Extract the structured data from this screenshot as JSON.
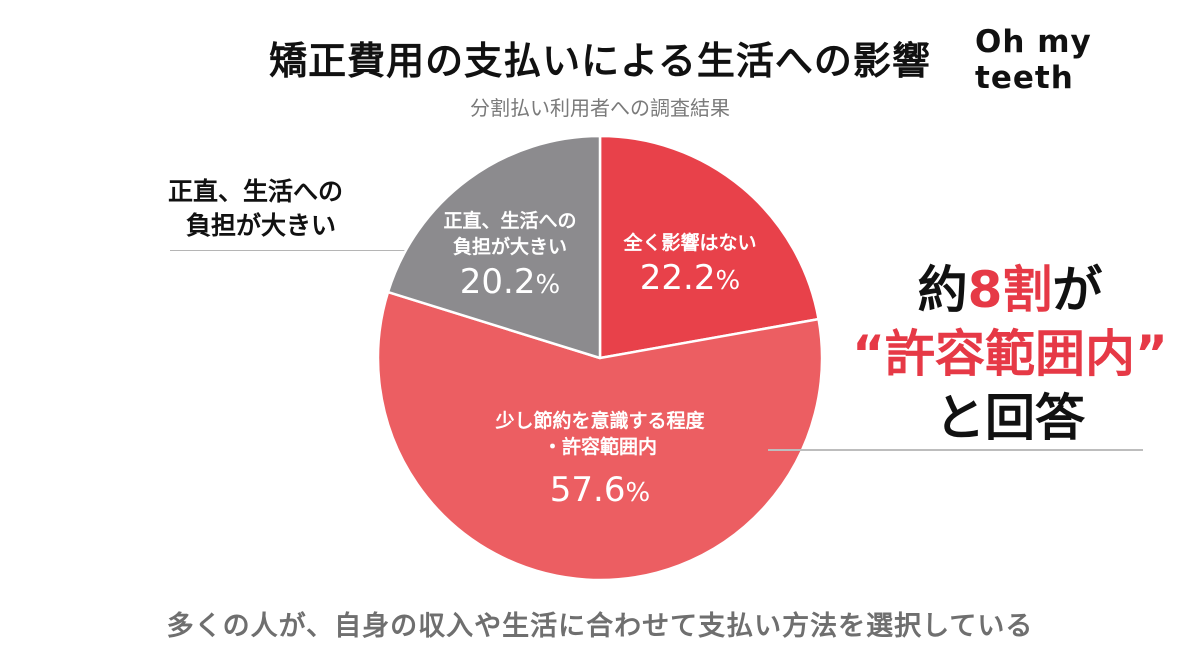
{
  "header": {
    "title": "矯正費用の支払いによる生活への影響",
    "subtitle": "分割払い利用者への調査結果",
    "brand": "Oh my teeth"
  },
  "callouts": {
    "left_line1": "正直、生活への",
    "left_line2": "負担が大きい"
  },
  "highlight": {
    "part1": "約",
    "number": "8割",
    "part2": "が",
    "quote_open": "“",
    "phrase": "許容範囲内",
    "quote_close": "”",
    "part3": "と回答"
  },
  "footer": {
    "text": "多くの人が、自身の収入や生活に合わせて支払い方法を選択している"
  },
  "colors": {
    "slice_no_impact": "#E8414A",
    "slice_tolerable": "#EC5E62",
    "slice_burden": "#8C8B8E",
    "accent_red": "#E63946"
  },
  "chart_data": {
    "type": "pie",
    "title": "矯正費用の支払いによる生活への影響",
    "subtitle": "分割払い利用者への調査結果",
    "start_angle": "12 o'clock, clockwise",
    "slices": [
      {
        "label": "全く影響はない",
        "value": 22.2,
        "display": "22.2",
        "color": "#E8414A"
      },
      {
        "label_line1": "少し節約を意識する程度",
        "label_line2": "・許容範囲内",
        "label": "少し節約を意識する程度・許容範囲内",
        "value": 57.6,
        "display": "57.6",
        "color": "#EC5E62"
      },
      {
        "label_line1": "正直、生活への",
        "label_line2": "負担が大きい",
        "label": "正直、生活への負担が大きい",
        "value": 20.2,
        "display": "20.2",
        "color": "#8C8B8E"
      }
    ],
    "unit": "%",
    "annotation": "約8割が“許容範囲内”と回答",
    "legend": "none (labels inside slices)"
  }
}
